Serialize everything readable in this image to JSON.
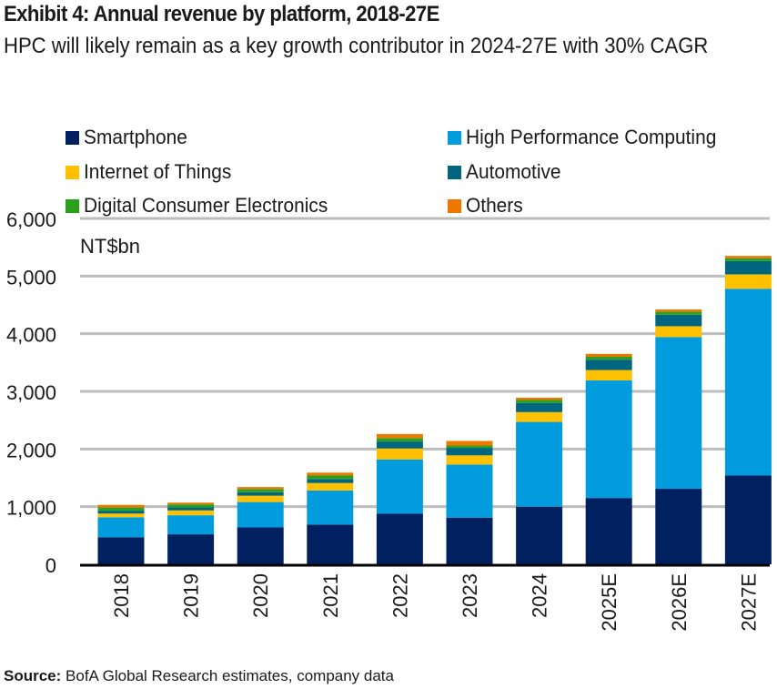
{
  "header": {
    "title": "Exhibit 4: Annual revenue by platform, 2018-27E",
    "subtitle": "HPC will likely remain as a key growth contributor in 2024-27E with 30% CAGR"
  },
  "footer": {
    "source_label": "Source:",
    "source_text": " BofA Global Research estimates, company data"
  },
  "chart_data": {
    "type": "bar",
    "stacked": true,
    "title": "Exhibit 4: Annual revenue by platform, 2018-27E",
    "subtitle": "HPC will likely remain as a key growth contributor in 2024-27E with 30% CAGR",
    "xlabel": "",
    "ylabel": "NT$bn",
    "ylim": [
      0,
      6000
    ],
    "yticks": [
      0,
      1000,
      2000,
      3000,
      4000,
      5000,
      6000
    ],
    "ytick_labels": [
      "0",
      "1,000",
      "2,000",
      "3,000",
      "4,000",
      "5,000",
      "6,000"
    ],
    "grid": true,
    "legend_position": "top",
    "categories": [
      "2018",
      "2019",
      "2020",
      "2021",
      "2022",
      "2023",
      "2024",
      "2025E",
      "2026E",
      "2027E"
    ],
    "series": [
      {
        "name": "Smartphone",
        "color": "#002060",
        "values": [
          470,
          520,
          640,
          690,
          880,
          810,
          1000,
          1150,
          1310,
          1540
        ]
      },
      {
        "name": "High Performance Computing",
        "color": "#009CDE",
        "values": [
          345,
          330,
          440,
          590,
          940,
          920,
          1470,
          2040,
          2630,
          3240
        ]
      },
      {
        "name": "Internet of Things",
        "color": "#FFC000",
        "values": [
          65,
          85,
          110,
          130,
          190,
          160,
          170,
          180,
          190,
          250
        ]
      },
      {
        "name": "Automotive",
        "color": "#006680",
        "values": [
          50,
          55,
          60,
          70,
          120,
          130,
          160,
          180,
          200,
          230
        ]
      },
      {
        "name": "Digital Consumer Electronics",
        "color": "#2CA01C",
        "values": [
          55,
          50,
          55,
          60,
          60,
          40,
          50,
          50,
          50,
          50
        ]
      },
      {
        "name": "Others",
        "color": "#EE7700",
        "values": [
          45,
          30,
          35,
          50,
          70,
          80,
          40,
          50,
          40,
          40
        ]
      }
    ],
    "legend_order": [
      "Smartphone",
      "High Performance Computing",
      "Internet of Things",
      "Automotive",
      "Digital Consumer Electronics",
      "Others"
    ]
  }
}
